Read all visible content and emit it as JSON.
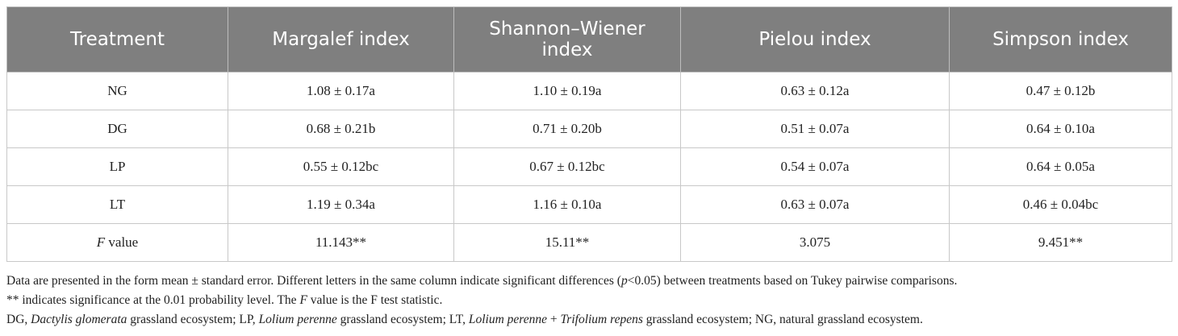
{
  "table": {
    "header": [
      "Treatment",
      "Margalef index",
      "Shannon–Wiener index",
      "Pielou index",
      "Simpson index"
    ],
    "rows": [
      [
        "NG",
        "1.08 ± 0.17a",
        "1.10 ± 0.19a",
        "0.63 ± 0.12a",
        "0.47 ± 0.12b"
      ],
      [
        "DG",
        "0.68 ± 0.21b",
        "0.71 ± 0.20b",
        "0.51 ± 0.07a",
        "0.64 ± 0.10a"
      ],
      [
        "LP",
        "0.55 ± 0.12bc",
        "0.67 ± 0.12bc",
        "0.54 ± 0.07a",
        "0.64 ± 0.05a"
      ],
      [
        "LT",
        "1.19 ± 0.34a",
        "1.16 ± 0.10a",
        "0.63 ± 0.07a",
        "0.46 ± 0.04bc"
      ],
      [
        [
          {
            "text": "F",
            "italic": true
          },
          {
            "text": " value"
          }
        ],
        "11.143**",
        "15.11**",
        "3.075",
        "9.451**"
      ]
    ]
  },
  "notes": [
    [
      {
        "text": "Data are presented in the form mean ± standard error. Different letters in the same column indicate significant differences ("
      },
      {
        "text": "p",
        "italic": true
      },
      {
        "text": "<0.05) between treatments based on Tukey pairwise comparisons."
      }
    ],
    [
      {
        "text": "** indicates significance at the 0.01 probability level. The "
      },
      {
        "text": "F",
        "italic": true
      },
      {
        "text": " value is the F test statistic."
      }
    ],
    [
      {
        "text": "DG, "
      },
      {
        "text": "Dactylis glomerata",
        "italic": true
      },
      {
        "text": " grassland ecosystem; LP, "
      },
      {
        "text": "Lolium perenne",
        "italic": true
      },
      {
        "text": " grassland ecosystem; LT, "
      },
      {
        "text": "Lolium perenne",
        "italic": true
      },
      {
        "text": " + "
      },
      {
        "text": "Trifolium repens",
        "italic": true
      },
      {
        "text": " grassland ecosystem; NG, natural grassland ecosystem."
      }
    ]
  ]
}
